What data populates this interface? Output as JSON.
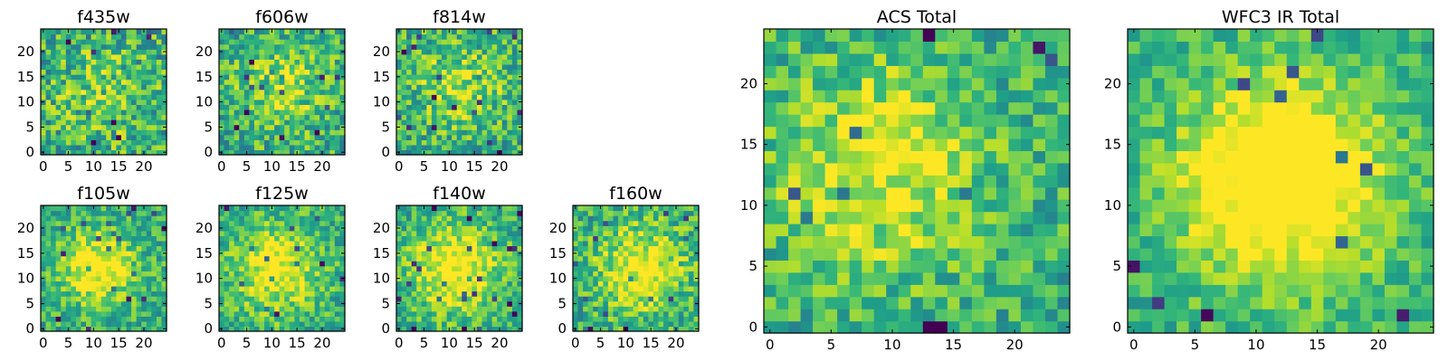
{
  "chart_data": [
    {
      "id": "f435w",
      "type": "heatmap",
      "title": "f435w",
      "grid": false,
      "colormap": "viridis",
      "xlim": [
        -0.5,
        24.5
      ],
      "ylim": [
        -0.5,
        24.5
      ],
      "xticks": [
        0,
        5,
        10,
        15,
        20
      ],
      "yticks": [
        0,
        5,
        10,
        15,
        20
      ],
      "size": [
        25,
        25
      ],
      "seed": 11,
      "noise": 0.55,
      "blob": {
        "x": 12,
        "y": 12,
        "sigma": 7,
        "amp": 0.15
      }
    },
    {
      "id": "f606w",
      "type": "heatmap",
      "title": "f606w",
      "grid": false,
      "colormap": "viridis",
      "xlim": [
        -0.5,
        24.5
      ],
      "ylim": [
        -0.5,
        24.5
      ],
      "xticks": [
        0,
        5,
        10,
        15,
        20
      ],
      "yticks": [
        0,
        5,
        10,
        15,
        20
      ],
      "size": [
        25,
        25
      ],
      "seed": 23,
      "noise": 0.5,
      "blob": {
        "x": 12,
        "y": 13,
        "sigma": 6,
        "amp": 0.25
      }
    },
    {
      "id": "f814w",
      "type": "heatmap",
      "title": "f814w",
      "grid": false,
      "colormap": "viridis",
      "xlim": [
        -0.5,
        24.5
      ],
      "ylim": [
        -0.5,
        24.5
      ],
      "xticks": [
        0,
        5,
        10,
        15,
        20
      ],
      "yticks": [
        0,
        5,
        10,
        15,
        20
      ],
      "size": [
        25,
        25
      ],
      "seed": 37,
      "noise": 0.5,
      "blob": {
        "x": 12,
        "y": 13,
        "sigma": 6,
        "amp": 0.25
      }
    },
    {
      "id": "f105w",
      "type": "heatmap",
      "title": "f105w",
      "grid": false,
      "colormap": "viridis",
      "xlim": [
        -0.5,
        24.5
      ],
      "ylim": [
        -0.5,
        24.5
      ],
      "xticks": [
        0,
        5,
        10,
        15,
        20
      ],
      "yticks": [
        0,
        5,
        10,
        15,
        20
      ],
      "size": [
        25,
        25
      ],
      "seed": 41,
      "noise": 0.4,
      "blob": {
        "x": 11,
        "y": 12,
        "sigma": 5,
        "amp": 0.45
      }
    },
    {
      "id": "f125w",
      "type": "heatmap",
      "title": "f125w",
      "grid": false,
      "colormap": "viridis",
      "xlim": [
        -0.5,
        24.5
      ],
      "ylim": [
        -0.5,
        24.5
      ],
      "xticks": [
        0,
        5,
        10,
        15,
        20
      ],
      "yticks": [
        0,
        5,
        10,
        15,
        20
      ],
      "size": [
        25,
        25
      ],
      "seed": 53,
      "noise": 0.4,
      "blob": {
        "x": 11,
        "y": 12,
        "sigma": 6,
        "amp": 0.4
      }
    },
    {
      "id": "f140w",
      "type": "heatmap",
      "title": "f140w",
      "grid": false,
      "colormap": "viridis",
      "xlim": [
        -0.5,
        24.5
      ],
      "ylim": [
        -0.5,
        24.5
      ],
      "xticks": [
        0,
        5,
        10,
        15,
        20
      ],
      "yticks": [
        0,
        5,
        10,
        15,
        20
      ],
      "size": [
        25,
        25
      ],
      "seed": 67,
      "noise": 0.4,
      "blob": {
        "x": 11,
        "y": 12,
        "sigma": 6,
        "amp": 0.45
      }
    },
    {
      "id": "f160w",
      "type": "heatmap",
      "title": "f160w",
      "grid": false,
      "colormap": "viridis",
      "xlim": [
        -0.5,
        24.5
      ],
      "ylim": [
        -0.5,
        24.5
      ],
      "xticks": [
        0,
        5,
        10,
        15,
        20
      ],
      "yticks": [
        0,
        5,
        10,
        15,
        20
      ],
      "size": [
        25,
        25
      ],
      "seed": 79,
      "noise": 0.45,
      "blob": {
        "x": 13,
        "y": 12,
        "sigma": 6,
        "amp": 0.4
      }
    },
    {
      "id": "acs",
      "type": "heatmap",
      "title": "ACS Total",
      "grid": false,
      "colormap": "viridis",
      "xlim": [
        -0.5,
        24.5
      ],
      "ylim": [
        -0.5,
        24.5
      ],
      "xticks": [
        0,
        5,
        10,
        15,
        20
      ],
      "yticks": [
        0,
        5,
        10,
        15,
        20
      ],
      "size": [
        25,
        25
      ],
      "seed": 97,
      "noise": 0.4,
      "blob": {
        "x": 9,
        "y": 13,
        "sigma": 6,
        "amp": 0.35
      }
    },
    {
      "id": "wfc3",
      "type": "heatmap",
      "title": "WFC3 IR Total",
      "grid": false,
      "colormap": "viridis",
      "xlim": [
        -0.5,
        24.5
      ],
      "ylim": [
        -0.5,
        24.5
      ],
      "xticks": [
        0,
        5,
        10,
        15,
        20
      ],
      "yticks": [
        0,
        5,
        10,
        15,
        20
      ],
      "size": [
        25,
        25
      ],
      "seed": 113,
      "noise": 0.3,
      "blob": {
        "x": 12,
        "y": 12,
        "sigma": 6,
        "amp": 0.6
      }
    }
  ]
}
